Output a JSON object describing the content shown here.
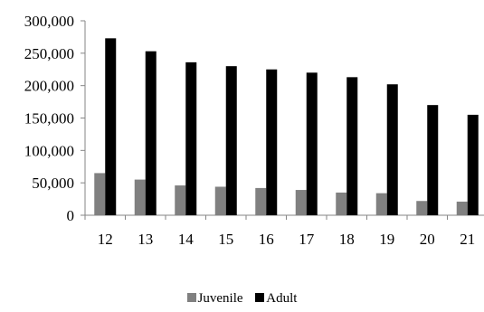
{
  "chart_data": {
    "type": "bar",
    "categories": [
      "12",
      "13",
      "14",
      "15",
      "16",
      "17",
      "18",
      "19",
      "20",
      "21"
    ],
    "series": [
      {
        "name": "Juvenile",
        "color": "#808080",
        "values": [
          65000,
          55000,
          46000,
          44000,
          42000,
          39000,
          35000,
          34000,
          22000,
          21000
        ]
      },
      {
        "name": "Adult",
        "color": "#000000",
        "values": [
          273000,
          253000,
          236000,
          230000,
          225000,
          220000,
          213000,
          202000,
          170000,
          155000
        ]
      }
    ],
    "ylim": [
      0,
      300000
    ],
    "yticks": [
      "0",
      "50,000",
      "100,000",
      "150,000",
      "200,000",
      "250,000",
      "300,000"
    ],
    "legend": {
      "position": "bottom"
    },
    "grid": false
  }
}
